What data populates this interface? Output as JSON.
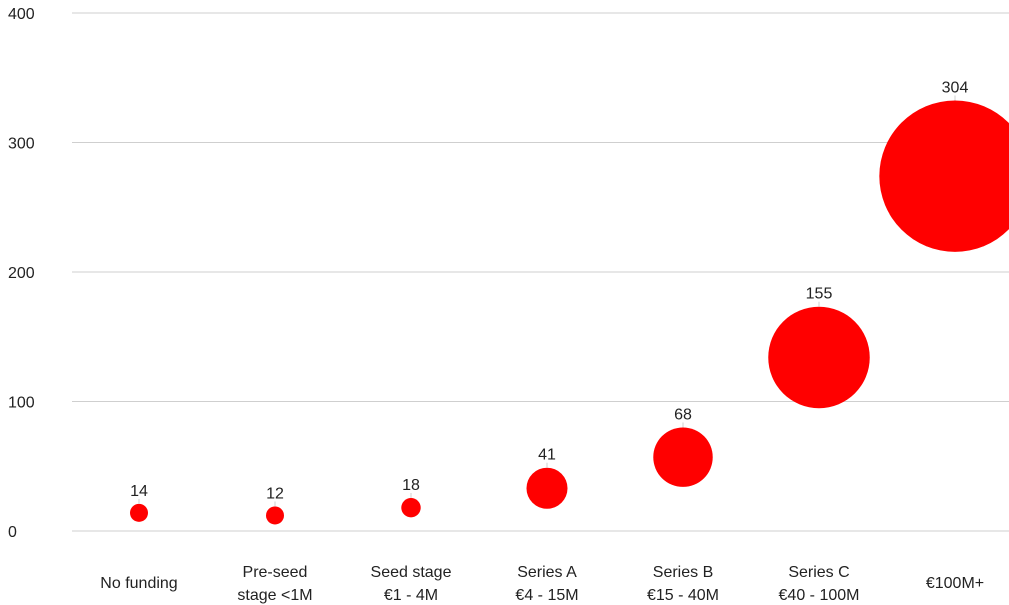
{
  "chart_data": {
    "type": "scatter",
    "title": "",
    "xlabel": "",
    "ylabel": "",
    "ylim": [
      0,
      400
    ],
    "y_ticks": [
      0,
      100,
      200,
      300,
      400
    ],
    "grid": true,
    "legend": "none",
    "bubble_color": "#ff0000",
    "categories": [
      [
        "No funding"
      ],
      [
        "Pre-seed",
        "stage <1M"
      ],
      [
        "Seed stage",
        "€1 - 4M"
      ],
      [
        "Series A",
        "€4 - 15M"
      ],
      [
        "Series B",
        "€15 - 40M"
      ],
      [
        "Series C",
        "€40 - 100M"
      ],
      [
        "€100M+"
      ]
    ],
    "series": [
      {
        "y": [
          14,
          12,
          18,
          33,
          57,
          134,
          274
        ],
        "size": [
          14,
          12,
          18,
          41,
          68,
          155,
          304
        ],
        "labels": [
          "14",
          "12",
          "18",
          "41",
          "68",
          "155",
          "304"
        ]
      }
    ]
  }
}
